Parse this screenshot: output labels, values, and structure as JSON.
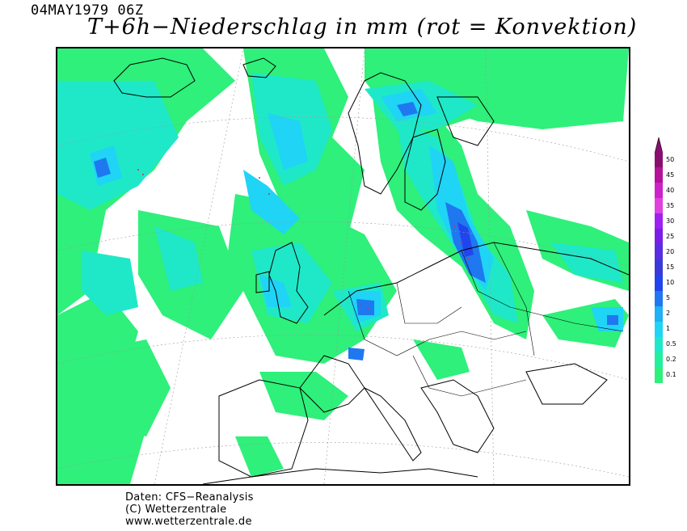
{
  "header": {
    "date": "04MAY1979 06Z",
    "title": "T+6h−Niederschlag in mm (rot = Konvektion)"
  },
  "legend": {
    "levels": [
      "50",
      "45",
      "40",
      "35",
      "30",
      "25",
      "20",
      "15",
      "10",
      "5",
      "2",
      "1",
      "0.5",
      "0.2",
      "0.1"
    ],
    "colors": [
      "#8a0e6e",
      "#b4129a",
      "#cc22cc",
      "#e040e0",
      "#a020f0",
      "#7a1ee6",
      "#5a2ee0",
      "#3a3ad8",
      "#2244ee",
      "#1f78f0",
      "#1fb0f5",
      "#1fd4f5",
      "#1fe8c8",
      "#22f09c",
      "#2ef07a"
    ]
  },
  "map": {
    "precip_colors": {
      "light": "#2ef07a",
      "light2": "#22f09c",
      "mid": "#1fe8c8",
      "cyan": "#1fd4f5",
      "blue": "#1fb0f5",
      "heavy": "#1f78f0",
      "intense": "#2244ee"
    },
    "coast_color": "#000000"
  },
  "footer": {
    "line1": "Daten: CFS−Reanalysis",
    "line2": "(C) Wetterzentrale",
    "line3": "www.wetterzentrale.de"
  }
}
